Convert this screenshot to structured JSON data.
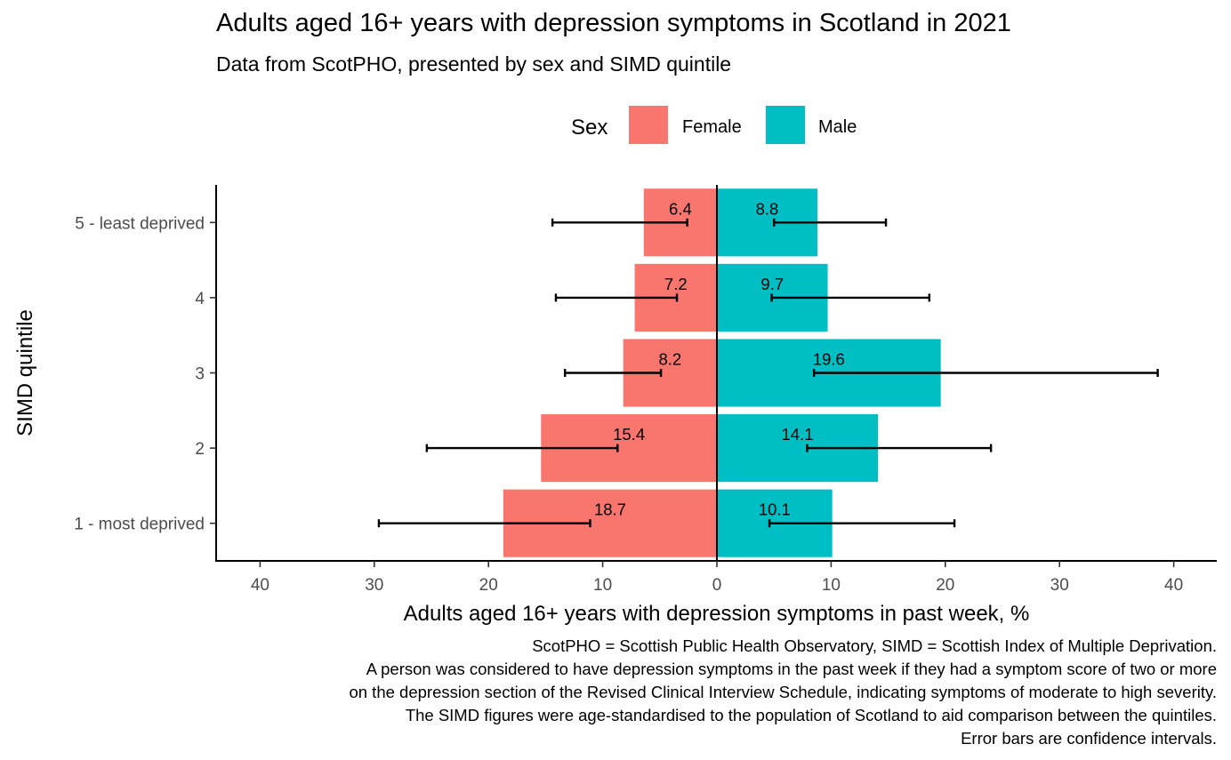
{
  "title": "Adults aged 16+ years with depression symptoms in Scotland in 2021",
  "subtitle": "Data from ScotPHO, presented by sex and SIMD quintile",
  "caption": [
    "ScotPHO = Scottish Public Health Observatory, SIMD = Scottish Index of Multiple Deprivation.",
    "A person was considered to have depression symptoms in the past week if they had a symptom score of two or more",
    "on the depression section of the Revised Clinical Interview Schedule, indicating symptoms of moderate to high severity.",
    "The SIMD figures were age-standardised to the population of Scotland to aid comparison between the quintiles.",
    "Error bars are confidence intervals."
  ],
  "chart_data": {
    "type": "bar",
    "orientation": "horizontal-diverging",
    "title": "Adults aged 16+ years with depression symptoms in Scotland in 2021",
    "subtitle": "Data from ScotPHO, presented by sex and SIMD quintile",
    "xlabel": "Adults aged 16+ years with depression symptoms in past week, %",
    "ylabel": "SIMD quintile",
    "xlim": [
      -44,
      44
    ],
    "xticks": [
      -40,
      -30,
      -20,
      -10,
      0,
      10,
      20,
      30,
      40
    ],
    "xtick_labels": [
      "40",
      "30",
      "20",
      "10",
      "0",
      "10",
      "20",
      "30",
      "40"
    ],
    "categories": [
      "1 - most deprived",
      "2",
      "3",
      "4",
      "5 - least deprived"
    ],
    "legend": {
      "title": "Sex",
      "position": "top"
    },
    "grid": false,
    "series": [
      {
        "name": "Female",
        "color": "#F8766D",
        "direction": "left",
        "values": [
          18.7,
          15.4,
          8.2,
          7.2,
          6.4
        ],
        "labels": [
          "18.7",
          "15.4",
          "8.2",
          "7.2",
          "6.4"
        ],
        "ci_low": [
          11.1,
          8.7,
          4.9,
          3.5,
          2.6
        ],
        "ci_high": [
          29.6,
          25.4,
          13.3,
          14.1,
          14.4
        ]
      },
      {
        "name": "Male",
        "color": "#00BFC4",
        "direction": "right",
        "values": [
          10.1,
          14.1,
          19.6,
          9.7,
          8.8
        ],
        "labels": [
          "10.1",
          "14.1",
          "19.6",
          "9.7",
          "8.8"
        ],
        "ci_low": [
          4.6,
          7.9,
          8.5,
          4.8,
          5.0
        ],
        "ci_high": [
          20.8,
          24.0,
          38.6,
          18.6,
          14.8
        ]
      }
    ]
  }
}
